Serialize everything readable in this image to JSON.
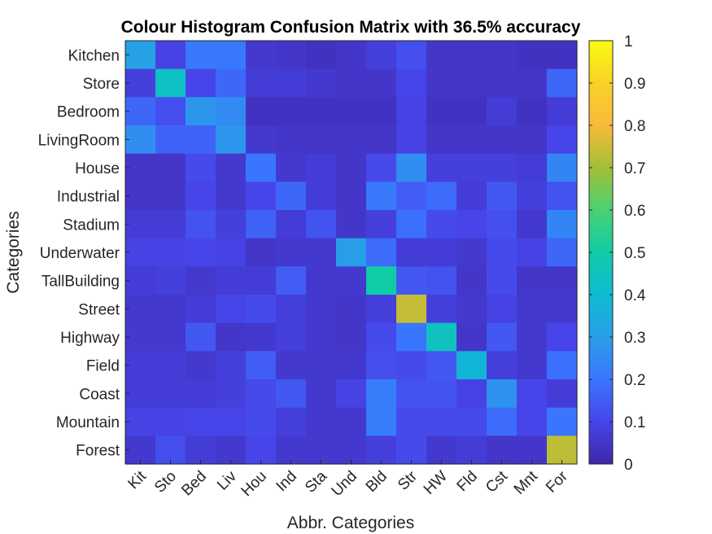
{
  "chart_data": {
    "type": "heatmap",
    "title": "Colour Histogram Confusion Matrix with 36.5% accuracy",
    "xlabel": "Abbr. Categories",
    "ylabel": "Categories",
    "x_categories": [
      "Kit",
      "Sto",
      "Bed",
      "Liv",
      "Hou",
      "Ind",
      "Sta",
      "Und",
      "Bld",
      "Str",
      "HW",
      "Fld",
      "Cst",
      "Mnt",
      "For"
    ],
    "y_categories": [
      "Kitchen",
      "Store",
      "Bedroom",
      "LivingRoom",
      "House",
      "Industrial",
      "Stadium",
      "Underwater",
      "TallBuilding",
      "Street",
      "Highway",
      "Field",
      "Coast",
      "Mountain",
      "Forest"
    ],
    "values": [
      [
        0.31,
        0.09,
        0.21,
        0.21,
        0.06,
        0.05,
        0.04,
        0.05,
        0.08,
        0.12,
        0.05,
        0.05,
        0.05,
        0.04,
        0.04
      ],
      [
        0.08,
        0.43,
        0.1,
        0.17,
        0.07,
        0.07,
        0.06,
        0.05,
        0.05,
        0.1,
        0.05,
        0.05,
        0.05,
        0.05,
        0.17
      ],
      [
        0.17,
        0.12,
        0.28,
        0.25,
        0.04,
        0.04,
        0.04,
        0.04,
        0.04,
        0.09,
        0.04,
        0.04,
        0.07,
        0.04,
        0.07
      ],
      [
        0.26,
        0.16,
        0.16,
        0.28,
        0.06,
        0.05,
        0.05,
        0.05,
        0.05,
        0.09,
        0.05,
        0.05,
        0.05,
        0.05,
        0.1
      ],
      [
        0.05,
        0.05,
        0.11,
        0.06,
        0.2,
        0.06,
        0.07,
        0.05,
        0.11,
        0.26,
        0.08,
        0.08,
        0.08,
        0.07,
        0.24
      ],
      [
        0.05,
        0.05,
        0.1,
        0.06,
        0.1,
        0.17,
        0.07,
        0.05,
        0.21,
        0.15,
        0.18,
        0.07,
        0.14,
        0.08,
        0.13
      ],
      [
        0.07,
        0.07,
        0.13,
        0.08,
        0.16,
        0.07,
        0.13,
        0.05,
        0.08,
        0.19,
        0.11,
        0.1,
        0.12,
        0.06,
        0.24
      ],
      [
        0.09,
        0.09,
        0.1,
        0.09,
        0.05,
        0.06,
        0.06,
        0.3,
        0.18,
        0.07,
        0.07,
        0.06,
        0.11,
        0.09,
        0.17
      ],
      [
        0.07,
        0.08,
        0.06,
        0.07,
        0.07,
        0.15,
        0.06,
        0.06,
        0.5,
        0.14,
        0.13,
        0.05,
        0.11,
        0.05,
        0.05
      ],
      [
        0.06,
        0.06,
        0.07,
        0.1,
        0.11,
        0.08,
        0.06,
        0.05,
        0.08,
        0.74,
        0.08,
        0.06,
        0.09,
        0.06,
        0.06
      ],
      [
        0.06,
        0.06,
        0.14,
        0.05,
        0.06,
        0.08,
        0.06,
        0.05,
        0.11,
        0.2,
        0.44,
        0.05,
        0.14,
        0.06,
        0.1
      ],
      [
        0.07,
        0.07,
        0.06,
        0.08,
        0.15,
        0.06,
        0.06,
        0.06,
        0.12,
        0.11,
        0.14,
        0.38,
        0.08,
        0.06,
        0.19
      ],
      [
        0.07,
        0.07,
        0.07,
        0.08,
        0.11,
        0.14,
        0.06,
        0.09,
        0.22,
        0.13,
        0.13,
        0.09,
        0.27,
        0.1,
        0.07
      ],
      [
        0.09,
        0.09,
        0.1,
        0.1,
        0.11,
        0.08,
        0.06,
        0.06,
        0.22,
        0.11,
        0.11,
        0.11,
        0.18,
        0.1,
        0.2
      ],
      [
        0.06,
        0.12,
        0.07,
        0.06,
        0.1,
        0.06,
        0.06,
        0.06,
        0.08,
        0.11,
        0.06,
        0.07,
        0.05,
        0.05,
        0.73
      ]
    ],
    "clim": [
      0,
      1
    ],
    "colorbar_ticks": [
      "0",
      "0.1",
      "0.2",
      "0.3",
      "0.4",
      "0.5",
      "0.6",
      "0.7",
      "0.8",
      "0.9",
      "1"
    ],
    "colormap": "parula",
    "grid": false
  }
}
